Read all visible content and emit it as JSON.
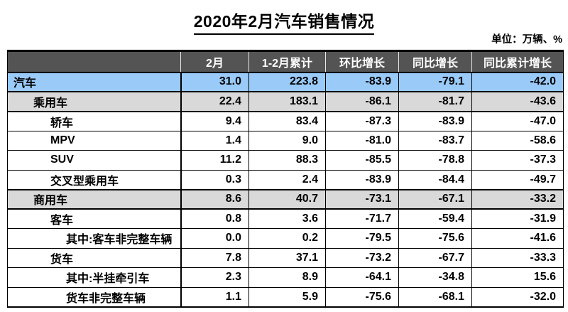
{
  "page": {
    "title": "2020年2月汽车销售情况",
    "unit_note": "单位：万辆、%"
  },
  "colors": {
    "header_bg": "#545454",
    "header_text": "#FFFFFF",
    "highlight_blue": "#9ACAF8",
    "highlight_gray": "#D9D9D9",
    "border": "#000000",
    "text": "#000000"
  },
  "chart_data": {
    "type": "table",
    "title": "2020年2月汽车销售情况",
    "unit": "万辆、%",
    "columns": [
      "",
      "2月",
      "1-2月累计",
      "环比增长",
      "同比增长",
      "同比累计增长"
    ],
    "rows": [
      {
        "label": "汽车",
        "indent": 0,
        "highlight": "blue",
        "values": [
          "31.0",
          "223.8",
          "-83.9",
          "-79.1",
          "-42.0"
        ]
      },
      {
        "label": "乘用车",
        "indent": 1,
        "highlight": "gray",
        "values": [
          "22.4",
          "183.1",
          "-86.1",
          "-81.7",
          "-43.6"
        ]
      },
      {
        "label": "轿车",
        "indent": 2,
        "highlight": "none",
        "values": [
          "9.4",
          "83.4",
          "-87.3",
          "-83.9",
          "-47.0"
        ]
      },
      {
        "label": "MPV",
        "indent": 2,
        "highlight": "none",
        "values": [
          "1.4",
          "9.0",
          "-81.0",
          "-83.7",
          "-58.6"
        ]
      },
      {
        "label": "SUV",
        "indent": 2,
        "highlight": "none",
        "values": [
          "11.2",
          "88.3",
          "-85.5",
          "-78.8",
          "-37.3"
        ]
      },
      {
        "label": "交叉型乘用车",
        "indent": 2,
        "highlight": "none",
        "values": [
          "0.3",
          "2.4",
          "-83.9",
          "-84.4",
          "-49.7"
        ]
      },
      {
        "label": "商用车",
        "indent": 1,
        "highlight": "gray",
        "values": [
          "8.6",
          "40.7",
          "-73.1",
          "-67.1",
          "-33.2"
        ]
      },
      {
        "label": "客车",
        "indent": 2,
        "highlight": "none",
        "values": [
          "0.8",
          "3.6",
          "-71.7",
          "-59.4",
          "-31.9"
        ]
      },
      {
        "label": "其中:客车非完整车辆",
        "indent": 3,
        "highlight": "none",
        "values": [
          "0.0",
          "0.2",
          "-79.5",
          "-75.6",
          "-41.6"
        ]
      },
      {
        "label": "货车",
        "indent": 2,
        "highlight": "none",
        "values": [
          "7.8",
          "37.1",
          "-73.2",
          "-67.7",
          "-33.3"
        ]
      },
      {
        "label": "其中:半挂牵引车",
        "indent": 3,
        "highlight": "none",
        "values": [
          "2.3",
          "8.9",
          "-64.1",
          "-34.8",
          "15.6"
        ]
      },
      {
        "label": "货车非完整车辆",
        "indent": 3,
        "highlight": "none",
        "values": [
          "1.1",
          "5.9",
          "-75.6",
          "-68.1",
          "-32.0"
        ]
      }
    ]
  }
}
